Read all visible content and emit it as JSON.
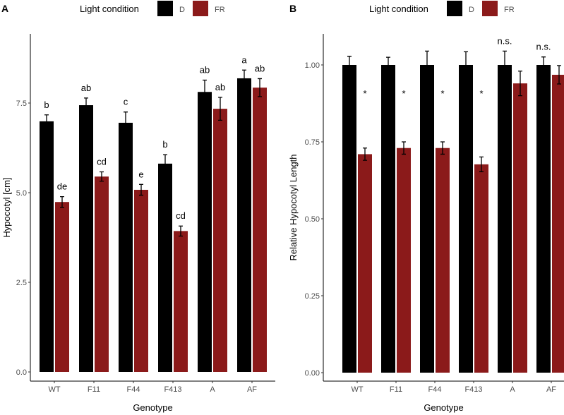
{
  "chart_data": [
    {
      "type": "bar",
      "panel": "A",
      "xlabel": "Genotype",
      "ylabel": "Hypocotyl [cm]",
      "ylim": [
        0,
        9.4
      ],
      "yticks": [
        "0.0",
        "2.5",
        "5.0",
        "7.5"
      ],
      "ytick_values": [
        0,
        2.5,
        5,
        7.5
      ],
      "legend": {
        "title": "Light condition",
        "position": "top",
        "entries": [
          "D",
          "FR"
        ]
      },
      "categories": [
        "WT",
        "F11",
        "F44",
        "F413",
        "A",
        "AF"
      ],
      "series": [
        {
          "name": "D",
          "color": "#000000",
          "values": [
            6.99,
            7.44,
            6.95,
            5.81,
            7.81,
            8.19
          ],
          "errors": [
            0.18,
            0.2,
            0.3,
            0.25,
            0.33,
            0.23
          ],
          "labels": [
            "b",
            "ab",
            "c",
            "b",
            "ab",
            "a"
          ]
        },
        {
          "name": "FR",
          "color": "#8B1A1A",
          "values": [
            4.74,
            5.45,
            5.08,
            3.93,
            7.34,
            7.93
          ],
          "errors": [
            0.15,
            0.13,
            0.15,
            0.14,
            0.32,
            0.25
          ],
          "labels": [
            "de",
            "cd",
            "e",
            "cd",
            "ab",
            "ab"
          ]
        }
      ]
    },
    {
      "type": "bar",
      "panel": "B",
      "xlabel": "Genotype",
      "ylabel": "Relative Hypocotyl Length",
      "ylim": [
        0,
        1.09
      ],
      "yticks": [
        "0.00",
        "0.25",
        "0.50",
        "0.75",
        "1.00"
      ],
      "ytick_values": [
        0,
        0.25,
        0.5,
        0.75,
        1
      ],
      "legend": {
        "title": "Light condition",
        "position": "top",
        "entries": [
          "D",
          "FR"
        ]
      },
      "categories": [
        "WT",
        "F11",
        "F44",
        "F413",
        "A",
        "AF"
      ],
      "series": [
        {
          "name": "D",
          "color": "#000000",
          "values": [
            1,
            1,
            1,
            1,
            1,
            1
          ],
          "errors": [
            0.028,
            0.025,
            0.045,
            0.043,
            0.045,
            0.026
          ],
          "labels": [
            "",
            "",
            "",
            "",
            "n.s.",
            "n.s."
          ]
        },
        {
          "name": "FR",
          "color": "#8B1A1A",
          "values": [
            0.71,
            0.73,
            0.73,
            0.677,
            0.94,
            0.968
          ],
          "errors": [
            0.02,
            0.02,
            0.02,
            0.024,
            0.04,
            0.03
          ],
          "labels": [
            "*",
            "*",
            "*",
            "*",
            "",
            ""
          ]
        }
      ]
    }
  ]
}
